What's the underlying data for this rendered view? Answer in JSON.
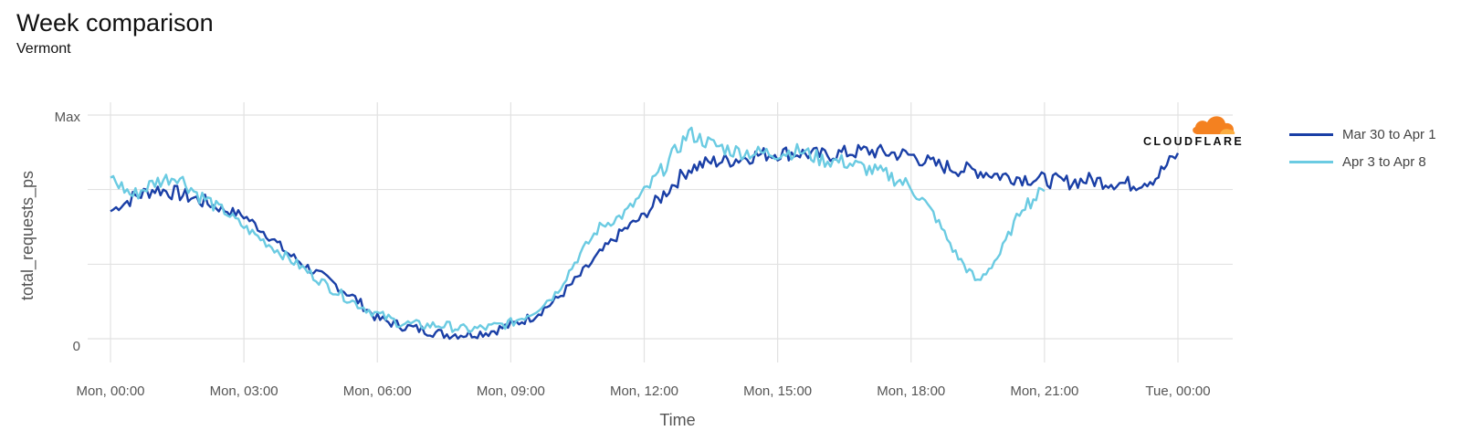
{
  "title": "Week comparison",
  "subtitle": "Vermont",
  "logo": {
    "text": "CLOUDFLARE",
    "brand_color": "#F48120"
  },
  "chart_data": {
    "type": "line",
    "xlabel": "Time",
    "ylabel": "total_requests_ps",
    "x_tick_labels": [
      "Mon, 00:00",
      "Mon, 03:00",
      "Mon, 06:00",
      "Mon, 09:00",
      "Mon, 12:00",
      "Mon, 15:00",
      "Mon, 18:00",
      "Mon, 21:00",
      "Tue, 00:00"
    ],
    "x_unit": "hours since Mon 00:00",
    "y_tick_labels": [
      "0",
      "Max"
    ],
    "y_range": [
      0,
      1
    ],
    "grid": true,
    "legend_position": "right",
    "series": [
      {
        "name": "Mar 30 to Apr 1",
        "color": "#1A3FA6",
        "points": [
          [
            0,
            0.57
          ],
          [
            0.5,
            0.63
          ],
          [
            1,
            0.67
          ],
          [
            1.5,
            0.65
          ],
          [
            2,
            0.62
          ],
          [
            2.5,
            0.58
          ],
          [
            3,
            0.55
          ],
          [
            3.5,
            0.47
          ],
          [
            4,
            0.38
          ],
          [
            4.5,
            0.31
          ],
          [
            5,
            0.25
          ],
          [
            5.5,
            0.18
          ],
          [
            6,
            0.09
          ],
          [
            6.5,
            0.06
          ],
          [
            7,
            0.04
          ],
          [
            7.5,
            0.02
          ],
          [
            8,
            0.02
          ],
          [
            8.5,
            0.03
          ],
          [
            9,
            0.06
          ],
          [
            9.5,
            0.1
          ],
          [
            10,
            0.17
          ],
          [
            10.5,
            0.27
          ],
          [
            11,
            0.38
          ],
          [
            11.5,
            0.48
          ],
          [
            12,
            0.55
          ],
          [
            12.5,
            0.66
          ],
          [
            13,
            0.76
          ],
          [
            13.5,
            0.79
          ],
          [
            14,
            0.8
          ],
          [
            14.5,
            0.82
          ],
          [
            15,
            0.83
          ],
          [
            15.5,
            0.83
          ],
          [
            16,
            0.82
          ],
          [
            16.5,
            0.83
          ],
          [
            17,
            0.84
          ],
          [
            17.5,
            0.83
          ],
          [
            18,
            0.82
          ],
          [
            18.5,
            0.78
          ],
          [
            19,
            0.76
          ],
          [
            19.5,
            0.75
          ],
          [
            20,
            0.73
          ],
          [
            20.5,
            0.72
          ],
          [
            21,
            0.71
          ],
          [
            21.5,
            0.7
          ],
          [
            22,
            0.71
          ],
          [
            22.5,
            0.7
          ],
          [
            23,
            0.69
          ],
          [
            23.5,
            0.72
          ],
          [
            24,
            0.83
          ]
        ]
      },
      {
        "name": "Apr 3 to Apr 8",
        "color": "#6BCBE2",
        "points": [
          [
            0,
            0.72
          ],
          [
            0.5,
            0.64
          ],
          [
            1,
            0.7
          ],
          [
            1.5,
            0.73
          ],
          [
            2,
            0.64
          ],
          [
            2.5,
            0.58
          ],
          [
            3,
            0.5
          ],
          [
            3.5,
            0.43
          ],
          [
            4,
            0.36
          ],
          [
            4.5,
            0.29
          ],
          [
            5,
            0.22
          ],
          [
            5.5,
            0.16
          ],
          [
            6,
            0.11
          ],
          [
            6.5,
            0.07
          ],
          [
            7,
            0.06
          ],
          [
            7.5,
            0.06
          ],
          [
            8,
            0.04
          ],
          [
            8.5,
            0.05
          ],
          [
            9,
            0.07
          ],
          [
            9.5,
            0.12
          ],
          [
            10,
            0.2
          ],
          [
            10.5,
            0.36
          ],
          [
            11,
            0.5
          ],
          [
            11.5,
            0.55
          ],
          [
            12,
            0.65
          ],
          [
            12.5,
            0.78
          ],
          [
            13,
            0.92
          ],
          [
            13.5,
            0.87
          ],
          [
            14,
            0.84
          ],
          [
            14.5,
            0.83
          ],
          [
            15,
            0.83
          ],
          [
            15.5,
            0.84
          ],
          [
            16,
            0.8
          ],
          [
            16.5,
            0.79
          ],
          [
            17,
            0.76
          ],
          [
            17.5,
            0.73
          ],
          [
            18,
            0.68
          ],
          [
            18.5,
            0.56
          ],
          [
            19,
            0.38
          ],
          [
            19.5,
            0.25
          ],
          [
            20,
            0.38
          ],
          [
            20.5,
            0.59
          ],
          [
            21,
            0.66
          ]
        ]
      }
    ]
  }
}
